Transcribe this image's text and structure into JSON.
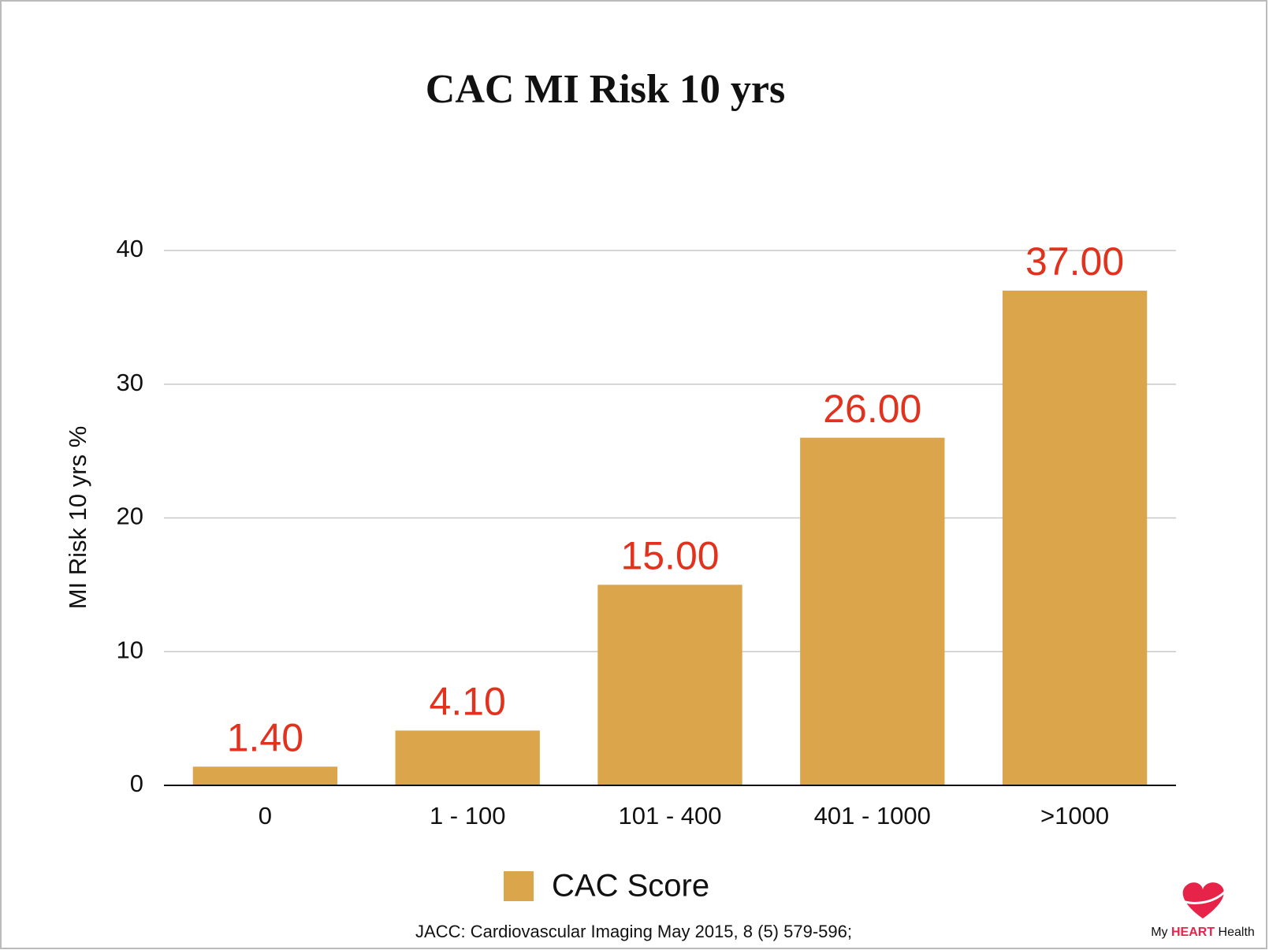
{
  "chart_data": {
    "type": "bar",
    "title": "CAC MI Risk 10 yrs",
    "y_label": "MI Risk 10 yrs %",
    "categories": [
      "0",
      "1 - 100",
      "101 - 400",
      "401 - 1000",
      ">1000"
    ],
    "series": [
      {
        "name": "CAC Score",
        "color": "#dba54c",
        "values": [
          1.4,
          4.1,
          15,
          26,
          37
        ],
        "value_labels": [
          "1.40",
          "4.10",
          "15.00",
          "26.00",
          "37.00"
        ]
      }
    ],
    "ylim": [
      0,
      40
    ],
    "yticks": [
      0,
      10,
      20,
      30,
      40
    ],
    "grid": true,
    "value_label_color": "#e2321e",
    "source": "JACC: Cardiovascular Imaging May 2015, 8 (5) 579-596;",
    "logo": [
      "My",
      "HEART",
      "Health"
    ]
  }
}
